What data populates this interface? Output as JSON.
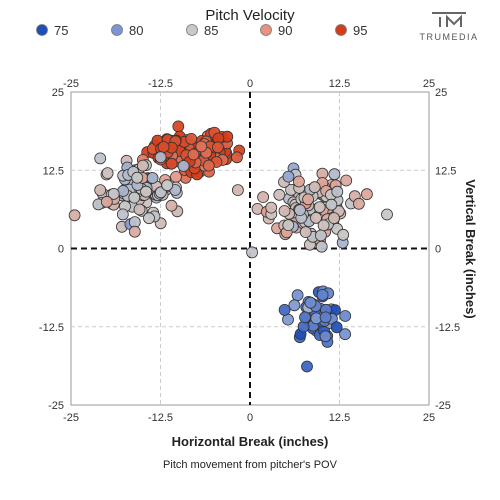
{
  "chart_data": {
    "type": "scatter",
    "legend": {
      "title": "Pitch Velocity",
      "placement": "top",
      "items": [
        {
          "label": "75",
          "color": "#1f4fb8"
        },
        {
          "label": "80",
          "color": "#7b96d4"
        },
        {
          "label": "85",
          "color": "#c8c8c8"
        },
        {
          "label": "90",
          "color": "#e8927f"
        },
        {
          "label": "95",
          "color": "#d43d1a"
        }
      ]
    },
    "xlabel": "Horizontal Break (inches)",
    "ylabel": "Vertical Break (inches)",
    "subtitle": "Pitch movement from pitcher's POV",
    "xlim": [
      -25,
      25
    ],
    "ylim": [
      -25,
      25
    ],
    "xticks": [
      "-25",
      "-12.5",
      "0",
      "12.5",
      "25"
    ],
    "yticks": [
      "25",
      "12.5",
      "0",
      "-12.5",
      "-25"
    ],
    "grid": true,
    "zero_lines": true,
    "clusters": [
      {
        "velocity": 94,
        "cx": -8,
        "cy": 15.5,
        "sx": 3.2,
        "sy": 1.6,
        "n": 110
      },
      {
        "velocity": 85,
        "cx": -15,
        "cy": 9,
        "sx": 2.8,
        "sy": 2.4,
        "n": 95
      },
      {
        "velocity": 86,
        "cx": 8,
        "cy": 6.5,
        "sx": 3.4,
        "sy": 2.8,
        "n": 115
      },
      {
        "velocity": 78,
        "cx": 9,
        "cy": -10,
        "sx": 1.8,
        "sy": 2.2,
        "n": 50
      }
    ]
  },
  "branding": {
    "logo_icon": "trumedia-tm-logo",
    "logo_text": "TRUMEDIA"
  }
}
